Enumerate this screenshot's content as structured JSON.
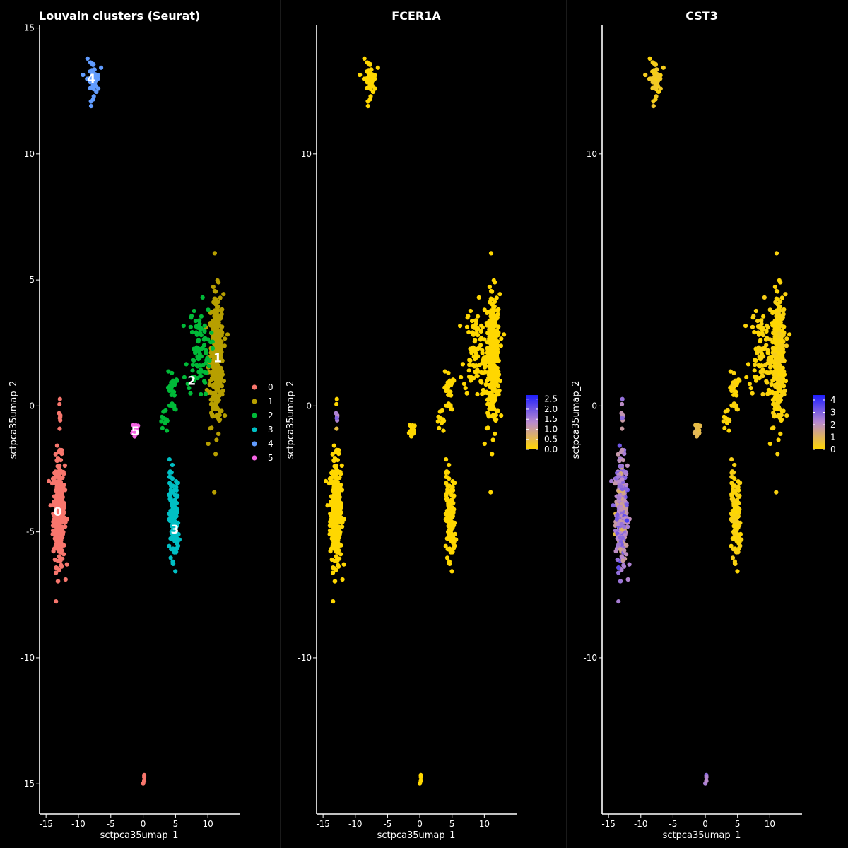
{
  "chart_data": [
    {
      "type": "scatter",
      "title": "Louvain clusters (Seurat)",
      "xlabel": "sctpca35umap_1",
      "ylabel": "sctpca35umap_2",
      "xlim": [
        -16,
        15
      ],
      "ylim": [
        -16.2,
        15.1
      ],
      "xticks": [
        -15,
        -10,
        -5,
        0,
        5,
        10
      ],
      "yticks": [
        15,
        10,
        5,
        0,
        -5,
        -10,
        -15
      ],
      "legend_position": "right",
      "legend": [
        "0",
        "1",
        "2",
        "3",
        "4",
        "5"
      ],
      "colors": [
        "#F8766D",
        "#B79F00",
        "#00BA38",
        "#00BFC4",
        "#619CFF",
        "#F564E3"
      ],
      "cluster_labels": [
        {
          "text": "0",
          "x": -13.2,
          "y": -4.2
        },
        {
          "text": "1",
          "x": 11.5,
          "y": 1.9
        },
        {
          "text": "2",
          "x": 7.5,
          "y": 1.0
        },
        {
          "text": "3",
          "x": 4.9,
          "y": -4.9
        },
        {
          "text": "4",
          "x": -8.0,
          "y": 13.0
        },
        {
          "text": "5",
          "x": -1.2,
          "y": -1.0
        }
      ],
      "clusters": [
        {
          "name": "0",
          "cx": -13.0,
          "cy": -4.2,
          "sx": 0.45,
          "sy": 1.05,
          "n": 320
        },
        {
          "name": "0",
          "cx": -12.9,
          "cy": -0.9,
          "sx": 0.15,
          "sy": 0.6,
          "n": 8
        },
        {
          "name": "0",
          "cx": 0.2,
          "cy": -14.8,
          "sx": 0.1,
          "sy": 0.1,
          "n": 4
        },
        {
          "name": "1",
          "cx": 11.3,
          "cy": 1.8,
          "sx": 0.55,
          "sy": 1.3,
          "n": 360
        },
        {
          "name": "2",
          "cx": 8.6,
          "cy": 2.2,
          "sx": 0.9,
          "sy": 0.9,
          "n": 90
        },
        {
          "name": "2",
          "cx": 4.5,
          "cy": 0.6,
          "sx": 0.35,
          "sy": 0.4,
          "n": 25
        },
        {
          "name": "2",
          "cx": 3.3,
          "cy": -0.6,
          "sx": 0.25,
          "sy": 0.3,
          "n": 12
        },
        {
          "name": "3",
          "cx": 4.8,
          "cy": -4.6,
          "sx": 0.35,
          "sy": 0.75,
          "n": 140
        },
        {
          "name": "3",
          "cx": 4.2,
          "cy": -3.0,
          "sx": 0.2,
          "sy": 0.4,
          "n": 15
        },
        {
          "name": "4",
          "cx": -7.8,
          "cy": 13.0,
          "sx": 0.5,
          "sy": 0.35,
          "n": 55
        },
        {
          "name": "5",
          "cx": -1.1,
          "cy": -1.0,
          "sx": 0.25,
          "sy": 0.15,
          "n": 22
        }
      ]
    },
    {
      "type": "scatter",
      "title": "FCER1A",
      "xlabel": "sctpca35umap_1",
      "ylabel": "sctpca35umap_2",
      "xlim": [
        -16,
        15
      ],
      "ylim": [
        -16.2,
        15.1
      ],
      "xticks": [
        -15,
        -10,
        -5,
        0,
        5,
        10
      ],
      "yticks": [
        10,
        0,
        -10
      ],
      "legend_position": "right",
      "color_scale": {
        "low": "#FFD700",
        "mid": "#B98ACF",
        "high": "#1E1EFF"
      },
      "colorbar_ticks": [
        "2.5",
        "2.0",
        "1.5",
        "1.0",
        "0.5",
        "0.0"
      ],
      "colorbar_range": [
        0,
        2.7
      ],
      "highlight": {
        "cx": -13.0,
        "cy": -0.5,
        "sd": 0.5,
        "value": 2.5
      }
    },
    {
      "type": "scatter",
      "title": "CST3",
      "xlabel": "sctpca35umap_1",
      "ylabel": "sctpca35umap_2",
      "xlim": [
        -16,
        15
      ],
      "ylim": [
        -16.2,
        15.1
      ],
      "xticks": [
        -15,
        -10,
        -5,
        0,
        5,
        10
      ],
      "yticks": [
        10,
        0,
        -10
      ],
      "legend_position": "right",
      "color_scale": {
        "low": "#FFD700",
        "mid": "#B98ACF",
        "high": "#1E1EFF"
      },
      "colorbar_ticks": [
        "4",
        "3",
        "2",
        "1",
        "0"
      ],
      "colorbar_range": [
        0,
        4.4
      ],
      "cluster_values": {
        "0": 2.3,
        "1": 0.1,
        "2": 0.1,
        "3": 0.1,
        "4": 0.3,
        "5": 0.8
      }
    }
  ]
}
